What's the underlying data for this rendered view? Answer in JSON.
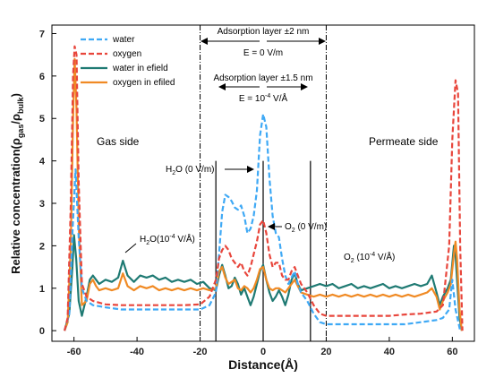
{
  "chart_data": {
    "type": "line",
    "xlabel": "Distance(Å)",
    "ylabel_main": "Relative concentration(ρ",
    "ylabel_sub1": "gas",
    "ylabel_mid": "/ρ",
    "ylabel_sub2": "bulk",
    "ylabel_end": ")",
    "xlim": [
      -67,
      67
    ],
    "ylim": [
      -0.25,
      7.2
    ],
    "xticks": [
      -60,
      -40,
      -20,
      0,
      20,
      40,
      60
    ],
    "yticks": [
      0,
      1,
      2,
      3,
      4,
      5,
      6,
      7
    ],
    "legend_position": "top-left",
    "colors": {
      "water": "#3fa9f5",
      "oxygen": "#e8463c",
      "water_efield": "#1f7a73",
      "oxygen_efield": "#f08a24"
    },
    "series": [
      {
        "name": "water",
        "style": "dashed",
        "points": [
          [
            -63,
            0
          ],
          [
            -61.5,
            0.4
          ],
          [
            -60.5,
            2.3
          ],
          [
            -59.5,
            3.8
          ],
          [
            -58.5,
            2.2
          ],
          [
            -57.5,
            1.0
          ],
          [
            -56,
            0.7
          ],
          [
            -54,
            0.6
          ],
          [
            -50,
            0.55
          ],
          [
            -45,
            0.5
          ],
          [
            -40,
            0.5
          ],
          [
            -35,
            0.5
          ],
          [
            -30,
            0.5
          ],
          [
            -25,
            0.5
          ],
          [
            -20,
            0.5
          ],
          [
            -17,
            0.6
          ],
          [
            -15,
            0.9
          ],
          [
            -14,
            1.8
          ],
          [
            -13,
            2.8
          ],
          [
            -12,
            3.2
          ],
          [
            -11,
            3.15
          ],
          [
            -10,
            3.05
          ],
          [
            -9,
            2.9
          ],
          [
            -8,
            2.85
          ],
          [
            -7,
            2.95
          ],
          [
            -6,
            2.7
          ],
          [
            -5,
            2.3
          ],
          [
            -4,
            2.4
          ],
          [
            -3,
            2.7
          ],
          [
            -2,
            3.3
          ],
          [
            -1,
            4.6
          ],
          [
            0,
            5.1
          ],
          [
            1,
            4.8
          ],
          [
            2,
            3.6
          ],
          [
            3,
            2.7
          ],
          [
            4,
            2.3
          ],
          [
            5,
            2.2
          ],
          [
            6,
            1.7
          ],
          [
            7,
            1.3
          ],
          [
            8,
            1.1
          ],
          [
            9,
            1.25
          ],
          [
            10,
            1.4
          ],
          [
            11,
            1.1
          ],
          [
            12,
            0.9
          ],
          [
            14,
            0.7
          ],
          [
            16,
            0.4
          ],
          [
            18,
            0.2
          ],
          [
            20,
            0.15
          ],
          [
            25,
            0.15
          ],
          [
            30,
            0.15
          ],
          [
            35,
            0.15
          ],
          [
            40,
            0.15
          ],
          [
            45,
            0.15
          ],
          [
            50,
            0.2
          ],
          [
            55,
            0.25
          ],
          [
            57,
            0.3
          ],
          [
            59,
            0.5
          ],
          [
            60,
            1.2
          ],
          [
            61,
            0.5
          ],
          [
            62.5,
            0
          ]
        ]
      },
      {
        "name": "oxygen",
        "style": "dashed",
        "points": [
          [
            -63,
            0
          ],
          [
            -62,
            0.3
          ],
          [
            -61,
            3.0
          ],
          [
            -60.3,
            6.0
          ],
          [
            -59.8,
            6.7
          ],
          [
            -59.2,
            6.5
          ],
          [
            -58.5,
            3.5
          ],
          [
            -57.5,
            1.1
          ],
          [
            -56,
            0.8
          ],
          [
            -54,
            0.7
          ],
          [
            -50,
            0.62
          ],
          [
            -45,
            0.6
          ],
          [
            -40,
            0.6
          ],
          [
            -35,
            0.6
          ],
          [
            -30,
            0.6
          ],
          [
            -25,
            0.6
          ],
          [
            -20,
            0.62
          ],
          [
            -17,
            0.8
          ],
          [
            -15,
            1.2
          ],
          [
            -14,
            1.7
          ],
          [
            -13,
            1.9
          ],
          [
            -12,
            2.0
          ],
          [
            -11,
            1.9
          ],
          [
            -10,
            1.7
          ],
          [
            -9,
            1.6
          ],
          [
            -8,
            1.5
          ],
          [
            -7,
            1.6
          ],
          [
            -6,
            1.4
          ],
          [
            -5,
            1.3
          ],
          [
            -4,
            1.5
          ],
          [
            -3,
            1.8
          ],
          [
            -2,
            2.1
          ],
          [
            -1,
            2.5
          ],
          [
            0,
            2.6
          ],
          [
            1,
            2.3
          ],
          [
            2,
            1.8
          ],
          [
            3,
            1.5
          ],
          [
            4,
            1.6
          ],
          [
            5,
            1.6
          ],
          [
            6,
            1.3
          ],
          [
            7,
            1.2
          ],
          [
            8,
            1.2
          ],
          [
            9,
            1.4
          ],
          [
            10,
            1.5
          ],
          [
            11,
            1.3
          ],
          [
            12,
            1.1
          ],
          [
            14,
            0.9
          ],
          [
            16,
            0.6
          ],
          [
            18,
            0.4
          ],
          [
            20,
            0.35
          ],
          [
            25,
            0.35
          ],
          [
            30,
            0.35
          ],
          [
            35,
            0.35
          ],
          [
            40,
            0.35
          ],
          [
            45,
            0.38
          ],
          [
            50,
            0.4
          ],
          [
            55,
            0.45
          ],
          [
            57,
            0.6
          ],
          [
            59,
            2.0
          ],
          [
            60,
            4.5
          ],
          [
            61,
            5.9
          ],
          [
            61.8,
            5.6
          ],
          [
            62.5,
            2.0
          ],
          [
            63.2,
            0
          ]
        ]
      },
      {
        "name": "water in efield",
        "style": "solid",
        "points": [
          [
            -63,
            0
          ],
          [
            -61.5,
            0.4
          ],
          [
            -60.5,
            1.5
          ],
          [
            -60,
            2.25
          ],
          [
            -59.3,
            1.7
          ],
          [
            -58.5,
            0.7
          ],
          [
            -57.5,
            0.35
          ],
          [
            -56,
            0.8
          ],
          [
            -55,
            1.2
          ],
          [
            -54,
            1.3
          ],
          [
            -53,
            1.2
          ],
          [
            -52,
            1.1
          ],
          [
            -50,
            1.2
          ],
          [
            -48,
            1.15
          ],
          [
            -46,
            1.25
          ],
          [
            -44.5,
            1.65
          ],
          [
            -43,
            1.3
          ],
          [
            -41,
            1.15
          ],
          [
            -39,
            1.3
          ],
          [
            -37,
            1.25
          ],
          [
            -35,
            1.3
          ],
          [
            -33,
            1.2
          ],
          [
            -31,
            1.25
          ],
          [
            -29,
            1.15
          ],
          [
            -27,
            1.2
          ],
          [
            -25,
            1.15
          ],
          [
            -23,
            1.2
          ],
          [
            -21,
            1.1
          ],
          [
            -19,
            1.15
          ],
          [
            -17,
            1.0
          ],
          [
            -15,
            0.95
          ],
          [
            -14,
            1.3
          ],
          [
            -13,
            1.55
          ],
          [
            -12,
            1.3
          ],
          [
            -11,
            1.0
          ],
          [
            -10,
            1.05
          ],
          [
            -9,
            1.25
          ],
          [
            -8,
            1.1
          ],
          [
            -7,
            0.85
          ],
          [
            -6,
            1.0
          ],
          [
            -5,
            0.8
          ],
          [
            -4,
            0.6
          ],
          [
            -3,
            0.8
          ],
          [
            -2,
            1.1
          ],
          [
            -1,
            1.4
          ],
          [
            0,
            1.55
          ],
          [
            1,
            1.2
          ],
          [
            2,
            0.9
          ],
          [
            3,
            0.7
          ],
          [
            4,
            0.8
          ],
          [
            5,
            0.95
          ],
          [
            6,
            0.8
          ],
          [
            7,
            0.6
          ],
          [
            8,
            0.85
          ],
          [
            9,
            1.2
          ],
          [
            10,
            1.35
          ],
          [
            11,
            1.1
          ],
          [
            12,
            0.95
          ],
          [
            14,
            1.0
          ],
          [
            16,
            1.05
          ],
          [
            18,
            1.1
          ],
          [
            20,
            1.05
          ],
          [
            22,
            1.1
          ],
          [
            24,
            1.0
          ],
          [
            26,
            1.05
          ],
          [
            28,
            1.1
          ],
          [
            30,
            1.0
          ],
          [
            32,
            1.05
          ],
          [
            34,
            1.0
          ],
          [
            36,
            1.05
          ],
          [
            38,
            1.1
          ],
          [
            40,
            1.0
          ],
          [
            42,
            1.05
          ],
          [
            44,
            1.0
          ],
          [
            46,
            1.05
          ],
          [
            48,
            1.1
          ],
          [
            50,
            1.05
          ],
          [
            52,
            1.1
          ],
          [
            53.5,
            1.3
          ],
          [
            55,
            0.9
          ],
          [
            56,
            0.6
          ],
          [
            57,
            0.8
          ],
          [
            58.5,
            1.0
          ],
          [
            59.5,
            1.2
          ],
          [
            60.5,
            2.0
          ],
          [
            61,
            1.8
          ],
          [
            61.5,
            1.2
          ],
          [
            62.3,
            0.3
          ],
          [
            63,
            0
          ]
        ]
      },
      {
        "name": "oxygen in efiled",
        "style": "solid",
        "points": [
          [
            -63,
            0
          ],
          [
            -62,
            0.2
          ],
          [
            -61,
            2.0
          ],
          [
            -60.3,
            5.0
          ],
          [
            -59.8,
            6.4
          ],
          [
            -59.2,
            5.2
          ],
          [
            -58.5,
            2.5
          ],
          [
            -57.5,
            0.6
          ],
          [
            -56,
            0.7
          ],
          [
            -55,
            1.1
          ],
          [
            -54,
            1.2
          ],
          [
            -53,
            1.05
          ],
          [
            -52,
            0.95
          ],
          [
            -50,
            1.0
          ],
          [
            -48,
            0.95
          ],
          [
            -46,
            1.0
          ],
          [
            -44.5,
            1.35
          ],
          [
            -43,
            1.05
          ],
          [
            -41,
            0.95
          ],
          [
            -39,
            1.05
          ],
          [
            -37,
            1.0
          ],
          [
            -35,
            1.05
          ],
          [
            -33,
            0.95
          ],
          [
            -31,
            1.0
          ],
          [
            -29,
            0.95
          ],
          [
            -27,
            1.0
          ],
          [
            -25,
            0.95
          ],
          [
            -23,
            1.0
          ],
          [
            -21,
            0.95
          ],
          [
            -19,
            1.0
          ],
          [
            -17,
            0.95
          ],
          [
            -15,
            1.0
          ],
          [
            -14,
            1.4
          ],
          [
            -13,
            1.5
          ],
          [
            -12,
            1.25
          ],
          [
            -11,
            1.1
          ],
          [
            -10,
            1.15
          ],
          [
            -9,
            1.2
          ],
          [
            -8,
            1.0
          ],
          [
            -7,
            0.95
          ],
          [
            -6,
            1.05
          ],
          [
            -5,
            1.0
          ],
          [
            -4,
            0.9
          ],
          [
            -3,
            1.0
          ],
          [
            -2,
            1.2
          ],
          [
            -1,
            1.45
          ],
          [
            0,
            1.5
          ],
          [
            1,
            1.2
          ],
          [
            2,
            1.0
          ],
          [
            3,
            0.95
          ],
          [
            4,
            1.0
          ],
          [
            5,
            1.0
          ],
          [
            6,
            0.95
          ],
          [
            7,
            0.9
          ],
          [
            8,
            1.0
          ],
          [
            9,
            1.1
          ],
          [
            10,
            1.2
          ],
          [
            11,
            1.05
          ],
          [
            12,
            0.9
          ],
          [
            14,
            0.85
          ],
          [
            16,
            0.8
          ],
          [
            18,
            0.85
          ],
          [
            20,
            0.8
          ],
          [
            22,
            0.85
          ],
          [
            24,
            0.8
          ],
          [
            26,
            0.85
          ],
          [
            28,
            0.8
          ],
          [
            30,
            0.85
          ],
          [
            32,
            0.8
          ],
          [
            34,
            0.85
          ],
          [
            36,
            0.8
          ],
          [
            38,
            0.85
          ],
          [
            40,
            0.8
          ],
          [
            42,
            0.85
          ],
          [
            44,
            0.8
          ],
          [
            46,
            0.85
          ],
          [
            48,
            0.8
          ],
          [
            50,
            0.85
          ],
          [
            52,
            0.9
          ],
          [
            53.5,
            1.0
          ],
          [
            55,
            0.8
          ],
          [
            56,
            0.5
          ],
          [
            57,
            0.7
          ],
          [
            58.5,
            0.9
          ],
          [
            59.5,
            1.1
          ],
          [
            60.5,
            1.8
          ],
          [
            61,
            2.1
          ],
          [
            61.5,
            1.7
          ],
          [
            62.3,
            0.5
          ],
          [
            63,
            0
          ]
        ]
      }
    ],
    "ref_lines_dashdot": [
      -20,
      20
    ],
    "ref_lines_solid": [
      -15,
      0,
      15
    ],
    "annotations": {
      "layer2_label": "Adsorption layer ±2 nm",
      "layer2_field": "E = 0 V/m",
      "layer15_label": "Adsorption layer ±1.5 nm",
      "layer15_field_main": "E = 10",
      "layer15_field_exp": "-4",
      "layer15_field_unit": " V/Å",
      "gas_side": "Gas side",
      "permeate_side": "Permeate side",
      "h2o_0": "H",
      "h2o_0_sub": "2",
      "h2o_0_rest": "O (0 V/m)",
      "o2_0": "O",
      "o2_0_sub": "2",
      "o2_0_rest": " (0 V/m)",
      "h2o_e": "H",
      "h2o_e_sub": "2",
      "h2o_e_mid": "O(10",
      "h2o_e_exp": "-4",
      "h2o_e_rest": " V/Å)",
      "o2_e": "O",
      "o2_e_sub": "2",
      "o2_e_mid": " (10",
      "o2_e_exp": "-4",
      "o2_e_rest": " V/Å)"
    }
  }
}
